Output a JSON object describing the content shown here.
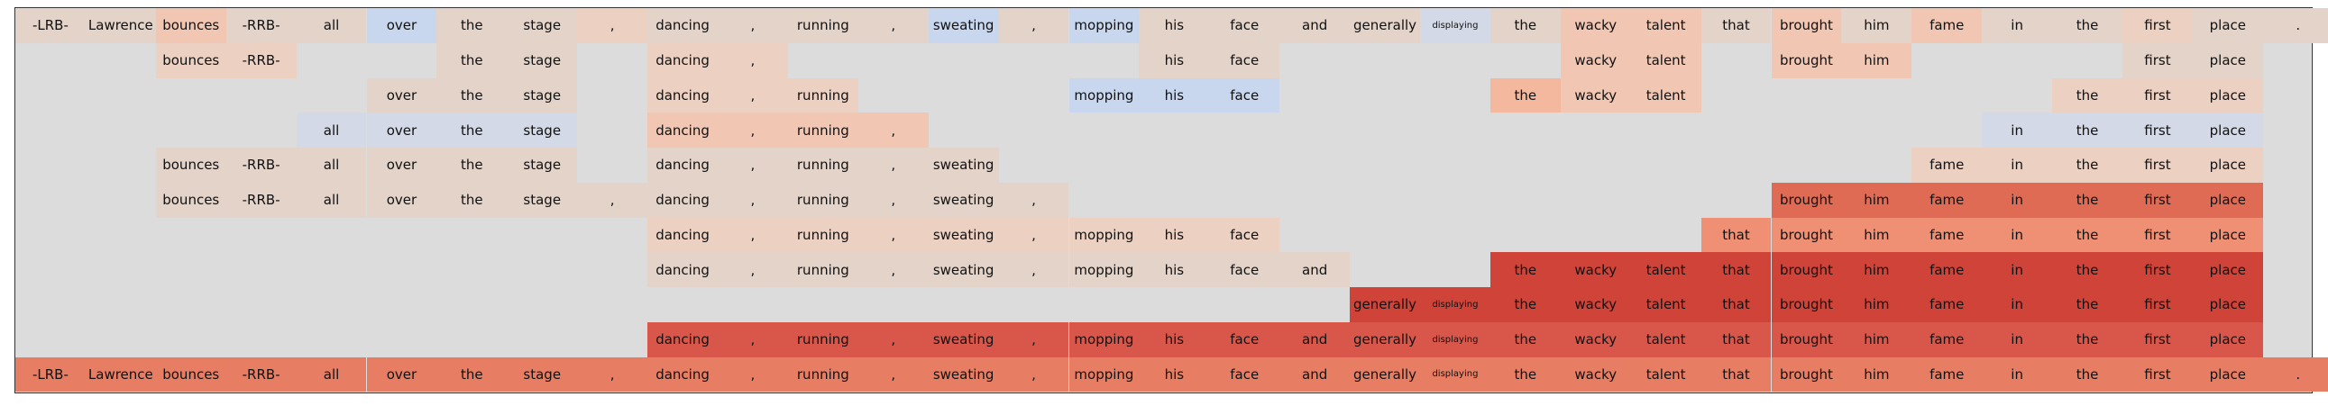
{
  "tokens": [
    "-LRB-",
    "Lawrence",
    "bounces",
    "-RRB-",
    "all",
    "over",
    "the",
    "stage",
    ",",
    "dancing",
    ",",
    "running",
    ",",
    "sweating",
    ",",
    "mopping",
    "his",
    "face",
    "and",
    "generally",
    "displaying",
    "the",
    "wacky",
    "talent",
    "that",
    "brought",
    "him",
    "fame",
    "in",
    "the",
    "first",
    "place",
    "."
  ],
  "small_token_indices": [
    20
  ],
  "palette": {
    "b2": "#c9d7ee",
    "b1": "#d3d9e6",
    "e": "#e4d3c9",
    "p1": "#ecd0c2",
    "p2": "#f1c7b4",
    "p3": "#f3b89e",
    "p4": "#ef8f73",
    "p5": "#e77d63",
    "p6": "#e06b55",
    "p7": "#d9574a",
    "p8": "#cf4339"
  },
  "rows": [
    {
      "cells": [
        [
          0,
          "e"
        ],
        [
          1,
          "e"
        ],
        [
          2,
          "p2"
        ],
        [
          3,
          "e"
        ],
        [
          4,
          "e"
        ],
        [
          5,
          "b2"
        ],
        [
          6,
          "e"
        ],
        [
          7,
          "e"
        ],
        [
          8,
          "p1"
        ],
        [
          9,
          "e"
        ],
        [
          10,
          "e"
        ],
        [
          11,
          "e"
        ],
        [
          12,
          "e"
        ],
        [
          13,
          "b2"
        ],
        [
          14,
          "e"
        ],
        [
          15,
          "b2"
        ],
        [
          16,
          "e"
        ],
        [
          17,
          "e"
        ],
        [
          18,
          "e"
        ],
        [
          19,
          "e"
        ],
        [
          20,
          "b1"
        ],
        [
          21,
          "e"
        ],
        [
          22,
          "p2"
        ],
        [
          23,
          "p2"
        ],
        [
          24,
          "e"
        ],
        [
          25,
          "p2"
        ],
        [
          26,
          "e"
        ],
        [
          27,
          "p2"
        ],
        [
          28,
          "e"
        ],
        [
          29,
          "e"
        ],
        [
          30,
          "p1"
        ],
        [
          31,
          "e"
        ],
        [
          32,
          "e"
        ]
      ]
    },
    {
      "cells": [
        [
          2,
          "p1"
        ],
        [
          3,
          "p1"
        ],
        [
          6,
          "e"
        ],
        [
          7,
          "e"
        ],
        [
          9,
          "p1"
        ],
        [
          10,
          "p1"
        ],
        [
          16,
          "e"
        ],
        [
          17,
          "e"
        ],
        [
          22,
          "p2"
        ],
        [
          23,
          "p2"
        ],
        [
          25,
          "p2"
        ],
        [
          26,
          "p2"
        ],
        [
          30,
          "e"
        ],
        [
          31,
          "e"
        ]
      ]
    },
    {
      "cells": [
        [
          5,
          "e"
        ],
        [
          6,
          "e"
        ],
        [
          7,
          "e"
        ],
        [
          9,
          "p1"
        ],
        [
          10,
          "p1"
        ],
        [
          11,
          "p1"
        ],
        [
          15,
          "b2"
        ],
        [
          16,
          "b2"
        ],
        [
          17,
          "b2"
        ],
        [
          21,
          "p3"
        ],
        [
          22,
          "p2"
        ],
        [
          23,
          "p2"
        ],
        [
          29,
          "p1"
        ],
        [
          30,
          "p1"
        ],
        [
          31,
          "p1"
        ]
      ]
    },
    {
      "cells": [
        [
          4,
          "b1"
        ],
        [
          5,
          "b1"
        ],
        [
          6,
          "b1"
        ],
        [
          7,
          "b1"
        ],
        [
          9,
          "p2"
        ],
        [
          10,
          "p2"
        ],
        [
          11,
          "p2"
        ],
        [
          12,
          "p2"
        ],
        [
          28,
          "b1"
        ],
        [
          29,
          "b1"
        ],
        [
          30,
          "b1"
        ],
        [
          31,
          "b1"
        ]
      ]
    },
    {
      "cells": [
        [
          2,
          "e"
        ],
        [
          3,
          "e"
        ],
        [
          4,
          "e"
        ],
        [
          5,
          "e"
        ],
        [
          6,
          "e"
        ],
        [
          7,
          "e"
        ],
        [
          9,
          "e"
        ],
        [
          10,
          "e"
        ],
        [
          11,
          "e"
        ],
        [
          12,
          "e"
        ],
        [
          13,
          "e"
        ],
        [
          27,
          "p1"
        ],
        [
          28,
          "p1"
        ],
        [
          29,
          "p1"
        ],
        [
          30,
          "p1"
        ],
        [
          31,
          "p1"
        ]
      ]
    },
    {
      "cells": [
        [
          2,
          "e"
        ],
        [
          3,
          "e"
        ],
        [
          4,
          "e"
        ],
        [
          5,
          "e"
        ],
        [
          6,
          "e"
        ],
        [
          7,
          "e"
        ],
        [
          8,
          "e"
        ],
        [
          9,
          "e"
        ],
        [
          10,
          "e"
        ],
        [
          11,
          "e"
        ],
        [
          12,
          "e"
        ],
        [
          13,
          "e"
        ],
        [
          14,
          "e"
        ],
        [
          25,
          "p6"
        ],
        [
          26,
          "p6"
        ],
        [
          27,
          "p6"
        ],
        [
          28,
          "p6"
        ],
        [
          29,
          "p6"
        ],
        [
          30,
          "p6"
        ],
        [
          31,
          "p6"
        ]
      ]
    },
    {
      "cells": [
        [
          9,
          "p1"
        ],
        [
          10,
          "p1"
        ],
        [
          11,
          "p1"
        ],
        [
          12,
          "p1"
        ],
        [
          13,
          "p1"
        ],
        [
          14,
          "p1"
        ],
        [
          15,
          "p1"
        ],
        [
          16,
          "p1"
        ],
        [
          17,
          "p1"
        ],
        [
          24,
          "p4"
        ],
        [
          25,
          "p4"
        ],
        [
          26,
          "p4"
        ],
        [
          27,
          "p4"
        ],
        [
          28,
          "p4"
        ],
        [
          29,
          "p4"
        ],
        [
          30,
          "p4"
        ],
        [
          31,
          "p4"
        ]
      ]
    },
    {
      "cells": [
        [
          9,
          "e"
        ],
        [
          10,
          "e"
        ],
        [
          11,
          "e"
        ],
        [
          12,
          "e"
        ],
        [
          13,
          "e"
        ],
        [
          14,
          "e"
        ],
        [
          15,
          "e"
        ],
        [
          16,
          "e"
        ],
        [
          17,
          "e"
        ],
        [
          18,
          "e"
        ],
        [
          21,
          "p8"
        ],
        [
          22,
          "p8"
        ],
        [
          23,
          "p8"
        ],
        [
          24,
          "p8"
        ],
        [
          25,
          "p8"
        ],
        [
          26,
          "p8"
        ],
        [
          27,
          "p8"
        ],
        [
          28,
          "p8"
        ],
        [
          29,
          "p8"
        ],
        [
          30,
          "p8"
        ],
        [
          31,
          "p8"
        ]
      ]
    },
    {
      "cells": [
        [
          19,
          "p8"
        ],
        [
          20,
          "p8"
        ],
        [
          21,
          "p8"
        ],
        [
          22,
          "p8"
        ],
        [
          23,
          "p8"
        ],
        [
          24,
          "p8"
        ],
        [
          25,
          "p8"
        ],
        [
          26,
          "p8"
        ],
        [
          27,
          "p8"
        ],
        [
          28,
          "p8"
        ],
        [
          29,
          "p8"
        ],
        [
          30,
          "p8"
        ],
        [
          31,
          "p8"
        ]
      ]
    },
    {
      "cells": [
        [
          9,
          "p7"
        ],
        [
          10,
          "p7"
        ],
        [
          11,
          "p7"
        ],
        [
          12,
          "p7"
        ],
        [
          13,
          "p7"
        ],
        [
          14,
          "p7"
        ],
        [
          15,
          "p7"
        ],
        [
          16,
          "p7"
        ],
        [
          17,
          "p7"
        ],
        [
          18,
          "p7"
        ],
        [
          19,
          "p7"
        ],
        [
          20,
          "p7"
        ],
        [
          21,
          "p7"
        ],
        [
          22,
          "p7"
        ],
        [
          23,
          "p7"
        ],
        [
          24,
          "p7"
        ],
        [
          25,
          "p7"
        ],
        [
          26,
          "p7"
        ],
        [
          27,
          "p7"
        ],
        [
          28,
          "p7"
        ],
        [
          29,
          "p7"
        ],
        [
          30,
          "p7"
        ],
        [
          31,
          "p7"
        ]
      ]
    },
    {
      "cells": [
        [
          0,
          "p5"
        ],
        [
          1,
          "p5"
        ],
        [
          2,
          "p5"
        ],
        [
          3,
          "p5"
        ],
        [
          4,
          "p5"
        ],
        [
          5,
          "p5"
        ],
        [
          6,
          "p5"
        ],
        [
          7,
          "p5"
        ],
        [
          8,
          "p5"
        ],
        [
          9,
          "p5"
        ],
        [
          10,
          "p5"
        ],
        [
          11,
          "p5"
        ],
        [
          12,
          "p5"
        ],
        [
          13,
          "p5"
        ],
        [
          14,
          "p5"
        ],
        [
          15,
          "p5"
        ],
        [
          16,
          "p5"
        ],
        [
          17,
          "p5"
        ],
        [
          18,
          "p5"
        ],
        [
          19,
          "p5"
        ],
        [
          20,
          "p5"
        ],
        [
          21,
          "p5"
        ],
        [
          22,
          "p5"
        ],
        [
          23,
          "p5"
        ],
        [
          24,
          "p5"
        ],
        [
          25,
          "p5"
        ],
        [
          26,
          "p5"
        ],
        [
          27,
          "p5"
        ],
        [
          28,
          "p5"
        ],
        [
          29,
          "p5"
        ],
        [
          30,
          "p5"
        ],
        [
          31,
          "p5"
        ],
        [
          32,
          "p5"
        ]
      ]
    }
  ]
}
